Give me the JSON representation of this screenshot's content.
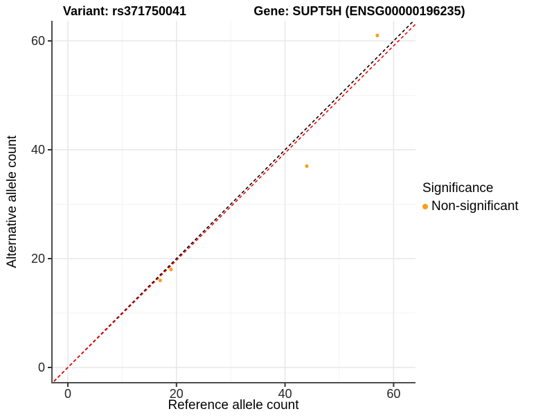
{
  "chart_data": {
    "type": "scatter",
    "title_left": "Variant: rs371750041",
    "title_right": "Gene: SUPT5H (ENSG00000196235)",
    "xlabel": "Reference allele count",
    "ylabel": "Alternative allele count",
    "xlim": [
      -3,
      64
    ],
    "ylim": [
      -2.8,
      63.7
    ],
    "xticks": [
      0,
      20,
      40,
      60
    ],
    "yticks": [
      0,
      20,
      40,
      60
    ],
    "x_minor_ticks": [
      10,
      30,
      50
    ],
    "y_minor_ticks": [
      10,
      30,
      50
    ],
    "grid": true,
    "legend_position": "right",
    "series": [
      {
        "name": "Non-significant",
        "color": "#FA9E1B",
        "points": [
          {
            "x": 17,
            "y": 16
          },
          {
            "x": 19,
            "y": 18
          },
          {
            "x": 44,
            "y": 37
          },
          {
            "x": 57,
            "y": 61
          }
        ]
      }
    ],
    "lines": [
      {
        "name": "identity-line",
        "slope": 1.0,
        "intercept": 0,
        "color": "#000000",
        "style": "dashed"
      },
      {
        "name": "fit-line",
        "slope": 0.985,
        "intercept": 0,
        "color": "#FF0000",
        "style": "dashed"
      }
    ],
    "legend": {
      "title": "Significance",
      "items": [
        {
          "label": "Non-significant",
          "color": "#FA9E1B"
        }
      ]
    }
  },
  "style_colors": {
    "axis_line": "#4D4D4D",
    "tick_mark": "#333333",
    "tick_label": "#262626",
    "grid_major": "#E7E7E7",
    "grid_minor": "#F3F3F3",
    "background": "#FFFFFF"
  }
}
